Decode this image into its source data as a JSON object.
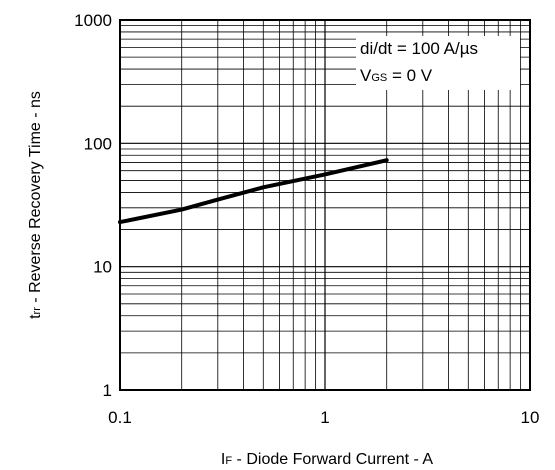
{
  "chart_data": {
    "type": "line",
    "xscale": "log",
    "yscale": "log",
    "xlim": [
      0.1,
      10
    ],
    "ylim": [
      1,
      1000
    ],
    "grid": true,
    "x_ticks": [
      "0.1",
      "1",
      "10"
    ],
    "y_ticks": [
      "1",
      "10",
      "100",
      "1000"
    ],
    "xlabel": {
      "prefix": "I",
      "sub": "F",
      "rest": " - Diode Forward Current - A"
    },
    "ylabel": {
      "prefix": "t",
      "sub": "rr",
      "rest": " - Reverse Recovery Time - ns"
    },
    "annotations": {
      "line1": "di/dt = 100 A/µs",
      "line2_prefix": "V",
      "line2_sub": "GS",
      "line2_rest": " = 0 V"
    },
    "series": [
      {
        "x": [
          0.1,
          0.2,
          0.3,
          0.5,
          1.0,
          2.0
        ],
        "y": [
          23,
          29,
          35,
          44,
          56,
          73
        ]
      }
    ]
  }
}
